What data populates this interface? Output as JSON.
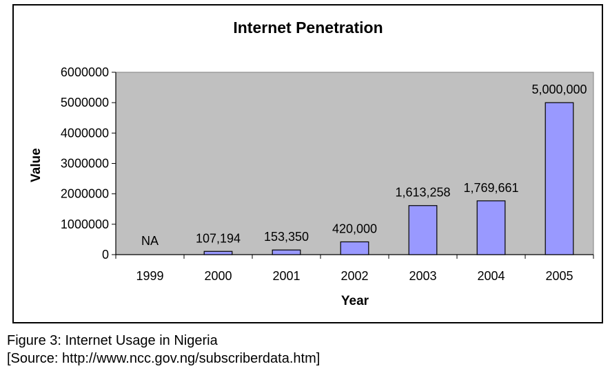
{
  "chart_data": {
    "type": "bar",
    "title": "Internet Penetration",
    "xlabel": "Year",
    "ylabel": "Value",
    "categories": [
      "1999",
      "2000",
      "2001",
      "2002",
      "2003",
      "2004",
      "2005"
    ],
    "values": [
      null,
      107194,
      153350,
      420000,
      1613258,
      1769661,
      5000000
    ],
    "data_labels": [
      "NA",
      "107,194",
      "153,350",
      "420,000",
      "1,613,258",
      "1,769,661",
      "5,000,000"
    ],
    "yticks": [
      "0",
      "1000000",
      "2000000",
      "3000000",
      "4000000",
      "5000000",
      "6000000"
    ],
    "ylim": [
      0,
      6000000
    ],
    "grid": false,
    "legend": "none",
    "colors": {
      "plot_background": "#c0c0c0",
      "bar_fill": "#9999ff",
      "bar_stroke": "#000000"
    }
  },
  "caption": {
    "line1": "Figure 3: Internet Usage in Nigeria",
    "line2": "[Source: http://www.ncc.gov.ng/subscriberdata.htm]"
  }
}
